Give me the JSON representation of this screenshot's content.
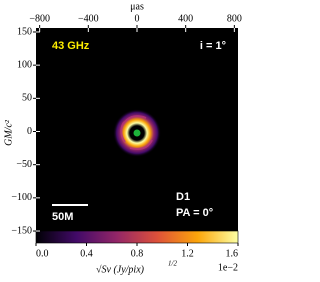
{
  "chart_data": {
    "type": "image",
    "x_label": "μas",
    "y_label": "GM/c²",
    "xlim": [
      -830,
      830
    ],
    "xticks": [
      {
        "value": -800,
        "label": "−800"
      },
      {
        "value": -400,
        "label": "−400"
      },
      0,
      400,
      800
    ],
    "ylim": [
      -156,
      156
    ],
    "yticks": [
      150,
      100,
      50,
      0,
      {
        "value": -50,
        "label": "−50"
      },
      {
        "value": -100,
        "label": "−100"
      },
      {
        "value": -150,
        "label": "−150"
      }
    ],
    "annotations": {
      "frequency": "43 GHz",
      "inclination": "i = 1°",
      "model": "D1",
      "position_angle": "PA = 0°",
      "scale_bar": "50M"
    },
    "colorbar": {
      "label": "√Sν (Jy/pix)",
      "label_exponent": "1/2",
      "offset": "1e−2",
      "lim": [
        0,
        1.6
      ],
      "ticks": [
        {
          "value": 0,
          "label": "0.0"
        },
        {
          "value": 0.4,
          "label": "0.4"
        },
        {
          "value": 0.8,
          "label": "0.8"
        },
        {
          "value": 1.2,
          "label": "1.2"
        },
        {
          "value": 1.6,
          "label": "1.6"
        }
      ]
    }
  }
}
